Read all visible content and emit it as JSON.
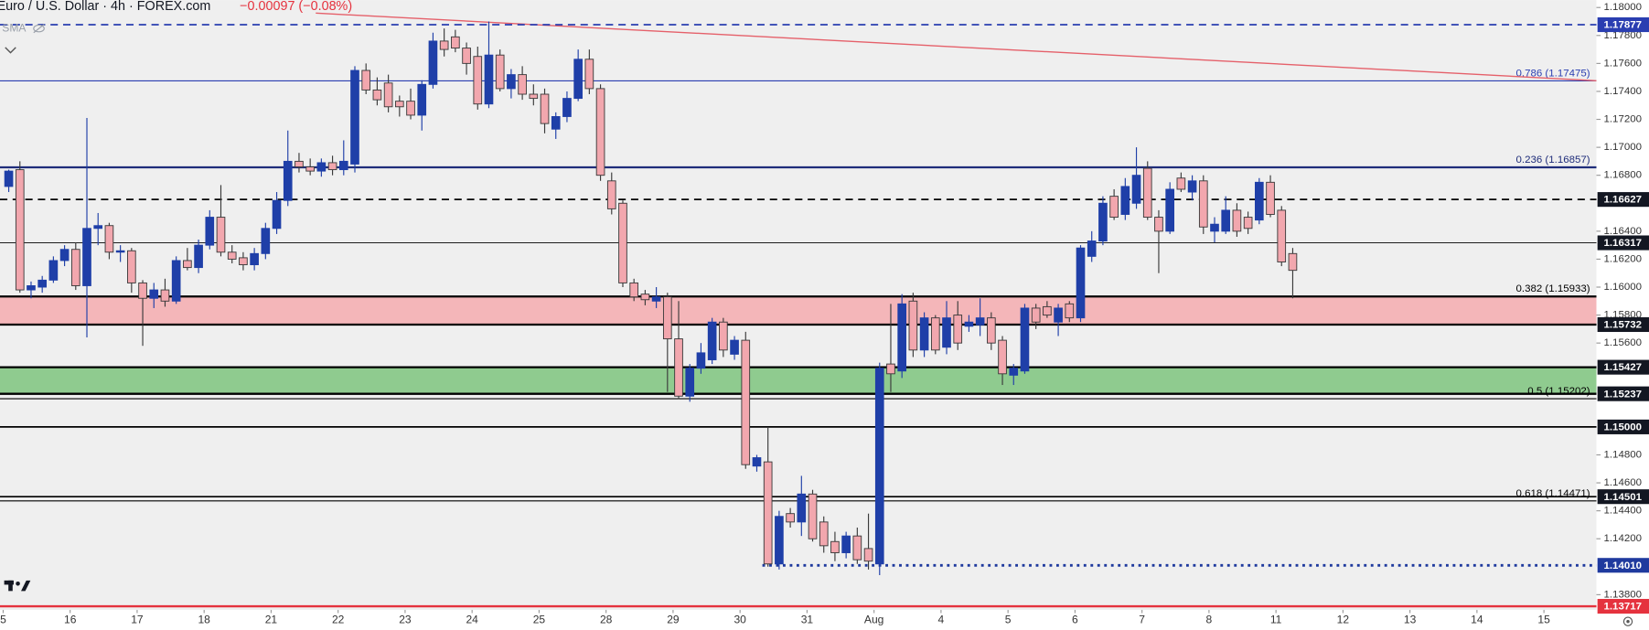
{
  "chart_data": {
    "type": "candlestick",
    "title": "Euro / U.S. Dollar · 4h · FOREX.com",
    "change": "−0.00097 (−0.08%)",
    "indicator": "SMA",
    "up_color": "#1f3fa8",
    "down_color": "#f2a7ae",
    "down_border": "#3a3a3a",
    "categories": [
      "5",
      null,
      null,
      null,
      null,
      null,
      "16",
      null,
      null,
      null,
      null,
      null,
      "17",
      null,
      null,
      null,
      null,
      null,
      "18",
      null,
      null,
      null,
      null,
      null,
      "21",
      null,
      null,
      null,
      null,
      null,
      "22",
      null,
      null,
      null,
      null,
      null,
      "23",
      null,
      null,
      null,
      null,
      null,
      "24",
      null,
      null,
      null,
      null,
      null,
      "25",
      null,
      null,
      null,
      null,
      null,
      "28",
      null,
      null,
      null,
      null,
      null,
      "29",
      null,
      null,
      null,
      null,
      null,
      "30",
      null,
      null,
      null,
      null,
      null,
      "31",
      null,
      null,
      null,
      null,
      null,
      "Aug",
      null,
      null,
      null,
      null,
      null,
      "4",
      null,
      null,
      null,
      null,
      null,
      "5",
      null,
      null,
      null,
      null,
      null,
      "6",
      null,
      null,
      null,
      null,
      null,
      "7",
      null,
      null,
      null,
      null,
      null,
      "8",
      null,
      null,
      null,
      null,
      null,
      "11",
      null,
      null,
      null,
      null,
      null,
      "12",
      null,
      null,
      null,
      null,
      null,
      "13",
      null,
      null,
      null,
      null,
      null,
      "14",
      null,
      null,
      null,
      null,
      null,
      "15",
      null,
      null,
      null,
      null,
      null
    ],
    "open": [
      1.1672,
      1.1684,
      1.1598,
      1.16,
      1.1605,
      1.1619,
      1.1627,
      1.1601,
      1.1642,
      1.1644,
      1.1625,
      1.1626,
      1.1603,
      1.1592,
      1.1598,
      1.159,
      1.1619,
      1.1614,
      1.163,
      1.165,
      1.1625,
      1.1621,
      1.1616,
      1.1624,
      1.1642,
      1.1662,
      1.169,
      1.1686,
      1.1683,
      1.1689,
      1.1684,
      1.1688,
      1.1755,
      1.1741,
      1.1746,
      1.1733,
      1.1733,
      1.1723,
      1.1745,
      1.1776,
      1.1779,
      1.1771,
      1.1765,
      1.1731,
      1.1766,
      1.1742,
      1.1752,
      1.1738,
      1.1738,
      1.1713,
      1.1722,
      1.1735,
      1.1763,
      1.1742,
      1.1676,
      1.166,
      1.1603,
      1.1595,
      1.159,
      1.1593,
      1.1563,
      1.1522,
      1.1542,
      1.1548,
      1.1575,
      1.1552,
      1.1562,
      1.1472,
      1.1475,
      1.1402,
      1.1438,
      1.1432,
      1.1452,
      1.1432,
      1.1418,
      1.141,
      1.1422,
      1.1413,
      1.1402,
      1.1545,
      1.154,
      1.159,
      1.1555,
      1.1578,
      1.1557,
      1.158,
      1.1572,
      1.1573,
      1.1578,
      1.1562,
      1.1537,
      1.154,
      1.1585,
      1.1586,
      1.1575,
      1.1588,
      1.1578,
      1.1622,
      1.1633,
      1.1665,
      1.1652,
      1.166,
      1.1685,
      1.165,
      1.164,
      1.1678,
      1.1668,
      1.1676,
      1.164,
      1.164,
      1.1655,
      1.165,
      1.1648,
      1.1675,
      1.1655,
      1.1624,
      null,
      null,
      null,
      null,
      null,
      null,
      null,
      null,
      null,
      null,
      null,
      null,
      null,
      null,
      null,
      null,
      null,
      null,
      null,
      null,
      null,
      null,
      null,
      null,
      null,
      null,
      null,
      null
    ],
    "high": [
      1.1684,
      1.169,
      1.1604,
      1.1608,
      1.1622,
      1.163,
      1.1632,
      1.1721,
      1.1653,
      1.1646,
      1.163,
      1.1628,
      1.1605,
      1.1603,
      1.1606,
      1.1622,
      1.1628,
      1.1634,
      1.1655,
      1.1673,
      1.163,
      1.1625,
      1.1628,
      1.1646,
      1.1668,
      1.1712,
      1.1696,
      1.1692,
      1.1692,
      1.1694,
      1.1705,
      1.1758,
      1.176,
      1.175,
      1.1752,
      1.1737,
      1.1742,
      1.1748,
      1.1782,
      1.1785,
      1.1784,
      1.1775,
      1.1772,
      1.179,
      1.177,
      1.1756,
      1.1758,
      1.1745,
      1.1742,
      1.1725,
      1.174,
      1.177,
      1.177,
      1.1745,
      1.1682,
      1.1662,
      1.1606,
      1.1598,
      1.16,
      1.1596,
      1.159,
      1.1545,
      1.156,
      1.1578,
      1.1578,
      1.1565,
      1.1568,
      1.148,
      1.15,
      1.144,
      1.1442,
      1.1465,
      1.1455,
      1.1436,
      1.1425,
      1.1425,
      1.1428,
      1.1438,
      1.1546,
      1.1588,
      1.1595,
      1.1596,
      1.1582,
      1.158,
      1.159,
      1.159,
      1.158,
      1.1592,
      1.1582,
      1.1565,
      1.1545,
      1.1588,
      1.1588,
      1.159,
      1.1588,
      1.159,
      1.163,
      1.164,
      1.1665,
      1.167,
      1.1678,
      1.17,
      1.169,
      1.1655,
      1.1675,
      1.1682,
      1.168,
      1.168,
      1.165,
      1.1665,
      1.166,
      1.1654,
      1.1678,
      1.168,
      1.1658,
      1.1628,
      null,
      null,
      null,
      null,
      null,
      null,
      null,
      null,
      null,
      null,
      null,
      null,
      null,
      null,
      null,
      null,
      null,
      null,
      null,
      null,
      null,
      null,
      null,
      null,
      null,
      null,
      null,
      null
    ],
    "low": [
      1.1668,
      1.1596,
      1.1592,
      1.1596,
      1.1603,
      1.1615,
      1.1598,
      1.1564,
      1.163,
      1.162,
      1.1618,
      1.1596,
      1.1558,
      1.1585,
      1.1586,
      1.1588,
      1.1612,
      1.161,
      1.1627,
      1.1622,
      1.1617,
      1.1612,
      1.1612,
      1.162,
      1.1638,
      1.1658,
      1.1682,
      1.168,
      1.1679,
      1.168,
      1.168,
      1.1682,
      1.1738,
      1.173,
      1.1725,
      1.1722,
      1.172,
      1.1712,
      1.1742,
      1.1765,
      1.1768,
      1.1752,
      1.1727,
      1.1728,
      1.174,
      1.1735,
      1.1734,
      1.173,
      1.171,
      1.1706,
      1.1718,
      1.1733,
      1.1738,
      1.1676,
      1.1652,
      1.16,
      1.159,
      1.1587,
      1.1585,
      1.1525,
      1.152,
      1.1518,
      1.1538,
      1.1545,
      1.155,
      1.1548,
      1.147,
      1.1468,
      1.14,
      1.1398,
      1.1428,
      1.1422,
      1.1418,
      1.141,
      1.1404,
      1.1406,
      1.1402,
      1.1398,
      1.1394,
      1.1525,
      1.1535,
      1.155,
      1.155,
      1.1552,
      1.1552,
      1.1555,
      1.1568,
      1.1565,
      1.1555,
      1.153,
      1.153,
      1.1538,
      1.157,
      1.1578,
      1.1565,
      1.1575,
      1.1575,
      1.1618,
      1.163,
      1.1648,
      1.1648,
      1.1656,
      1.1648,
      1.161,
      1.1638,
      1.1668,
      1.1662,
      1.1638,
      1.1632,
      1.1638,
      1.1636,
      1.1638,
      1.1645,
      1.165,
      1.1615,
      1.1592,
      null,
      null,
      null,
      null,
      null,
      null,
      null,
      null,
      null,
      null,
      null,
      null,
      null,
      null,
      null,
      null,
      null,
      null,
      null,
      null,
      null,
      null,
      null,
      null,
      null,
      null,
      null,
      null
    ],
    "close": [
      1.1683,
      1.1598,
      1.1601,
      1.1605,
      1.1619,
      1.1627,
      1.1601,
      1.1642,
      1.1644,
      1.1625,
      1.1626,
      1.1603,
      1.1592,
      1.1598,
      1.159,
      1.1619,
      1.1614,
      1.163,
      1.165,
      1.1625,
      1.162,
      1.1616,
      1.1624,
      1.1642,
      1.1662,
      1.169,
      1.1686,
      1.1683,
      1.1689,
      1.1684,
      1.169,
      1.1755,
      1.1741,
      1.1734,
      1.1729,
      1.1729,
      1.1723,
      1.1745,
      1.1776,
      1.177,
      1.1771,
      1.176,
      1.1731,
      1.1766,
      1.1742,
      1.1752,
      1.1738,
      1.1735,
      1.1717,
      1.1722,
      1.1735,
      1.1763,
      1.1742,
      1.168,
      1.1656,
      1.1603,
      1.1593,
      1.1591,
      1.1593,
      1.1563,
      1.1522,
      1.1542,
      1.1553,
      1.1575,
      1.1555,
      1.1562,
      1.1473,
      1.1478,
      1.1402,
      1.1436,
      1.1432,
      1.1452,
      1.142,
      1.1415,
      1.141,
      1.1422,
      1.1405,
      1.1404,
      1.1542,
      1.1538,
      1.1588,
      1.1555,
      1.1578,
      1.1555,
      1.1578,
      1.156,
      1.1575,
      1.1578,
      1.156,
      1.1538,
      1.1542,
      1.1585,
      1.1575,
      1.158,
      1.1585,
      1.1578,
      1.1628,
      1.1633,
      1.166,
      1.165,
      1.1672,
      1.168,
      1.165,
      1.164,
      1.167,
      1.167,
      1.1676,
      1.1643,
      1.1645,
      1.1655,
      1.164,
      1.1642,
      1.1675,
      1.1652,
      1.1618,
      1.1612,
      null,
      null,
      null,
      null,
      null,
      null,
      null,
      null,
      null,
      null,
      null,
      null,
      null,
      null,
      null,
      null,
      null,
      null,
      null,
      null,
      null,
      null,
      null,
      null,
      null,
      null,
      null,
      null
    ],
    "ylim": [
      1.13691,
      1.18053
    ],
    "yticks": [
      {
        "value": 1.18,
        "label": "1.18000"
      },
      {
        "value": 1.178,
        "label": "1.17800"
      },
      {
        "value": 1.176,
        "label": "1.17600"
      },
      {
        "value": 1.174,
        "label": "1.17400"
      },
      {
        "value": 1.172,
        "label": "1.17200"
      },
      {
        "value": 1.17,
        "label": "1.17000"
      },
      {
        "value": 1.168,
        "label": "1.16800"
      },
      {
        "value": 1.164,
        "label": "1.16400"
      },
      {
        "value": 1.162,
        "label": "1.16200"
      },
      {
        "value": 1.16,
        "label": "1.16000"
      },
      {
        "value": 1.158,
        "label": "1.15800"
      },
      {
        "value": 1.156,
        "label": "1.15600"
      },
      {
        "value": 1.148,
        "label": "1.14800"
      },
      {
        "value": 1.146,
        "label": "1.14600"
      },
      {
        "value": 1.144,
        "label": "1.14400"
      },
      {
        "value": 1.142,
        "label": "1.14200"
      },
      {
        "value": 1.138,
        "label": "1.13800"
      }
    ],
    "zones": [
      {
        "top": 1.15933,
        "bottom": 1.15732,
        "color": "#f4b6b9"
      },
      {
        "top": 1.15427,
        "bottom": 1.15237,
        "color": "#8fcb8f"
      }
    ],
    "levels": [
      {
        "value": 1.17877,
        "label": "1.17877",
        "color": "#2a3eb1",
        "style": "dashed",
        "width": 1.5
      },
      {
        "value": 1.16627,
        "label": "1.16627",
        "color": "#000000",
        "style": "dashed",
        "width": 1.5
      },
      {
        "value": 1.16317,
        "label": "1.16317",
        "color": "#000000",
        "style": "solid",
        "width": 0.8
      },
      {
        "value": 1.15732,
        "label": "1.15732",
        "color": "#000000",
        "style": "solid",
        "width": 2
      },
      {
        "value": 1.15427,
        "label": "1.15427",
        "color": "#000000",
        "style": "solid",
        "width": 2
      },
      {
        "value": 1.15237,
        "label": "1.15237",
        "color": "#000000",
        "style": "solid",
        "width": 2
      },
      {
        "value": 1.15,
        "label": "1.15000",
        "color": "#000000",
        "style": "solid",
        "width": 1.5
      },
      {
        "value": 1.14501,
        "label": "1.14501",
        "color": "#000000",
        "style": "solid",
        "width": 1.5
      },
      {
        "value": 1.1401,
        "label": "1.14010",
        "color": "#1f3a9e",
        "style": "dotted",
        "width": 2.5
      },
      {
        "value": 1.13717,
        "label": "1.13717",
        "color": "#e5323e",
        "style": "solid",
        "width": 2
      }
    ],
    "fibs": [
      {
        "value": 1.17475,
        "label": "0.786 (1.17475)",
        "color": "#2a3eb1",
        "width": 1
      },
      {
        "value": 1.16857,
        "label": "0.236 (1.16857)",
        "color": "#1f2d7a",
        "width": 2
      },
      {
        "value": 1.15933,
        "label": "0.382 (1.15933)",
        "color": "#000000",
        "width": 2
      },
      {
        "value": 1.15202,
        "label": "0.5 (1.15202)",
        "color": "#000000",
        "width": 1
      },
      {
        "value": 1.14471,
        "label": "0.618 (1.14471)",
        "color": "#000000",
        "width": 1
      }
    ],
    "trendline": {
      "from": [
        28,
        1.1796
      ],
      "to": [
        143,
        1.17475
      ],
      "color": "#e5606a"
    }
  }
}
